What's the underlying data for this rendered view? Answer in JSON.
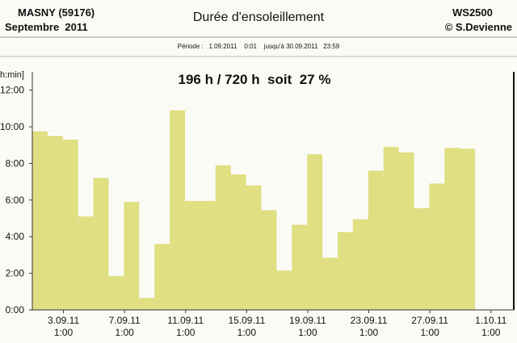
{
  "chart_data": {
    "type": "bar",
    "title": "Durée d'ensoleillement",
    "station": "MASNY (59176)",
    "month": "Septembre  2011",
    "device": "WS2500",
    "credit": "© S.Devienne",
    "subtitle": "Période :   1.09.2011    0:01    jusqu'à 30.09.2011   23:59",
    "annotation": "196 h / 720 h  soit  27 %",
    "ylabel": "h:min]",
    "color": "#e0df82",
    "x": [
      1,
      2,
      3,
      4,
      5,
      6,
      7,
      8,
      9,
      10,
      11,
      12,
      13,
      14,
      15,
      16,
      17,
      18,
      19,
      20,
      21,
      22,
      23,
      24,
      25,
      26,
      27,
      28,
      29
    ],
    "values": [
      9.75,
      9.5,
      9.3,
      5.1,
      7.2,
      1.85,
      5.9,
      0.65,
      3.6,
      10.9,
      5.95,
      5.95,
      7.9,
      7.4,
      6.8,
      5.45,
      2.15,
      4.65,
      8.5,
      2.85,
      4.25,
      4.95,
      7.6,
      8.9,
      8.6,
      5.55,
      6.9,
      8.85,
      8.8
    ],
    "xlim": [
      1,
      31
    ],
    "xticks": [
      {
        "value": 3.04,
        "label": "3.09.11\n1:00"
      },
      {
        "value": 7.04,
        "label": "7.09.11\n1:00"
      },
      {
        "value": 11.04,
        "label": "11.09.11\n1:00"
      },
      {
        "value": 15.04,
        "label": "15.09.11\n1:00"
      },
      {
        "value": 19.04,
        "label": "19.09.11\n1:00"
      },
      {
        "value": 23.04,
        "label": "23.09.11\n1:00"
      },
      {
        "value": 27.04,
        "label": "27.09.11\n1:00"
      },
      {
        "value": 31.04,
        "label": "1.10.11\n1:00"
      }
    ],
    "ylim": [
      0,
      13
    ],
    "yticks": [
      {
        "value": 0,
        "label": "0:00"
      },
      {
        "value": 2,
        "label": "2:00"
      },
      {
        "value": 4,
        "label": "4:00"
      },
      {
        "value": 6,
        "label": "6:00"
      },
      {
        "value": 8,
        "label": "8:00"
      },
      {
        "value": 10,
        "label": "10:00"
      },
      {
        "value": 12,
        "label": "12:00"
      }
    ]
  }
}
